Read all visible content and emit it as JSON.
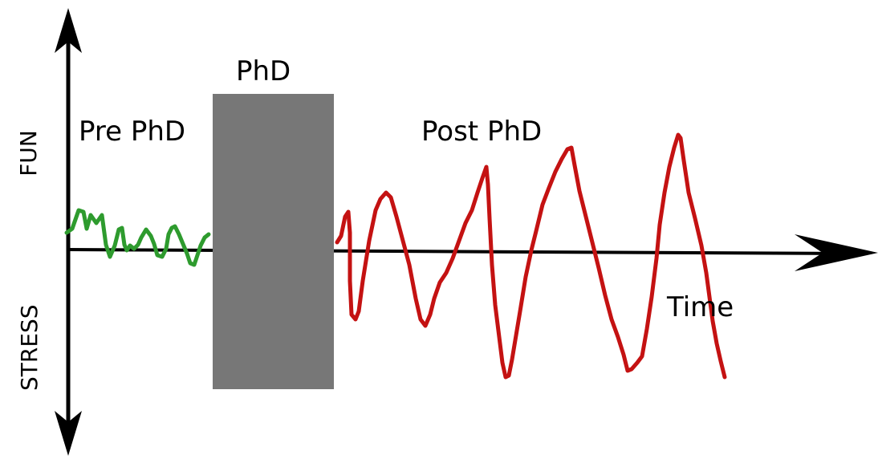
{
  "labels": {
    "y_positive": "FUN",
    "y_negative": "STRESS",
    "x_axis": "Time",
    "pre": "Pre PhD",
    "phd": "PhD",
    "post": "Post PhD"
  },
  "colors": {
    "axes": "#000000",
    "pre_curve": "#2e9b2e",
    "post_curve": "#c41212",
    "phd_block": "#777777",
    "background": "#ffffff"
  }
}
